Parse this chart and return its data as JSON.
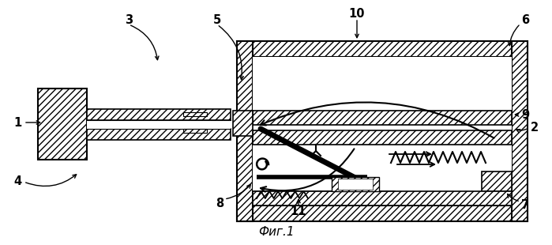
{
  "title": "Фиг.1",
  "bg_color": "#ffffff"
}
